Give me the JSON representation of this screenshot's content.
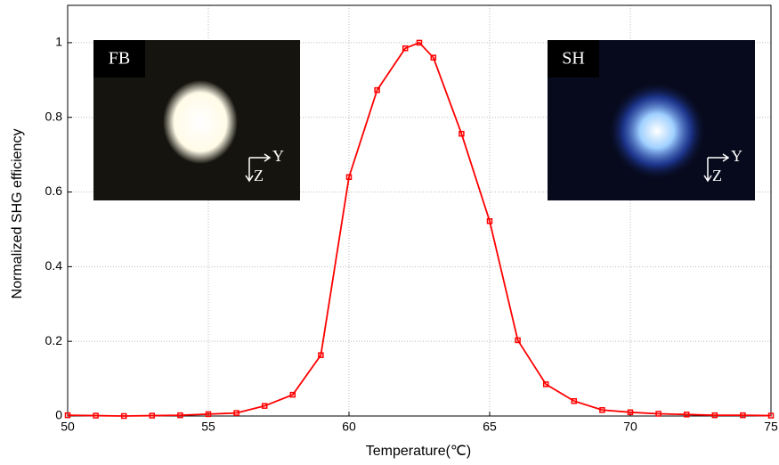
{
  "chart_data": {
    "type": "line",
    "x_label": "Temperature(℃)",
    "y_label": "Normalized SHG efficiency",
    "x": [
      50,
      51,
      52,
      53,
      54,
      55,
      56,
      57,
      58,
      59,
      60,
      61,
      62,
      62.5,
      63,
      64,
      65,
      66,
      67,
      68,
      69,
      70,
      71,
      72,
      73,
      74,
      75
    ],
    "values": [
      0.002,
      0.001,
      0.0,
      0.001,
      0.002,
      0.005,
      0.008,
      0.027,
      0.057,
      0.163,
      0.64,
      0.873,
      0.985,
      1.0,
      0.96,
      0.756,
      0.522,
      0.203,
      0.085,
      0.04,
      0.016,
      0.01,
      0.006,
      0.004,
      0.002,
      0.002,
      0.001
    ],
    "color": "#ff0000",
    "xlim": [
      50,
      75
    ],
    "xticks": [
      50,
      55,
      60,
      65,
      70,
      75
    ],
    "ylim": [
      0,
      1.1
    ],
    "yticks": [
      0,
      0.2,
      0.4,
      0.6,
      0.8,
      1
    ],
    "grid": true,
    "insets": [
      {
        "label": "FB",
        "axis_labels": [
          "Y",
          "Z"
        ],
        "glow": "#fffbe8"
      },
      {
        "label": "SH",
        "axis_labels": [
          "Y",
          "Z"
        ],
        "glow": "#4a7cff"
      }
    ]
  }
}
